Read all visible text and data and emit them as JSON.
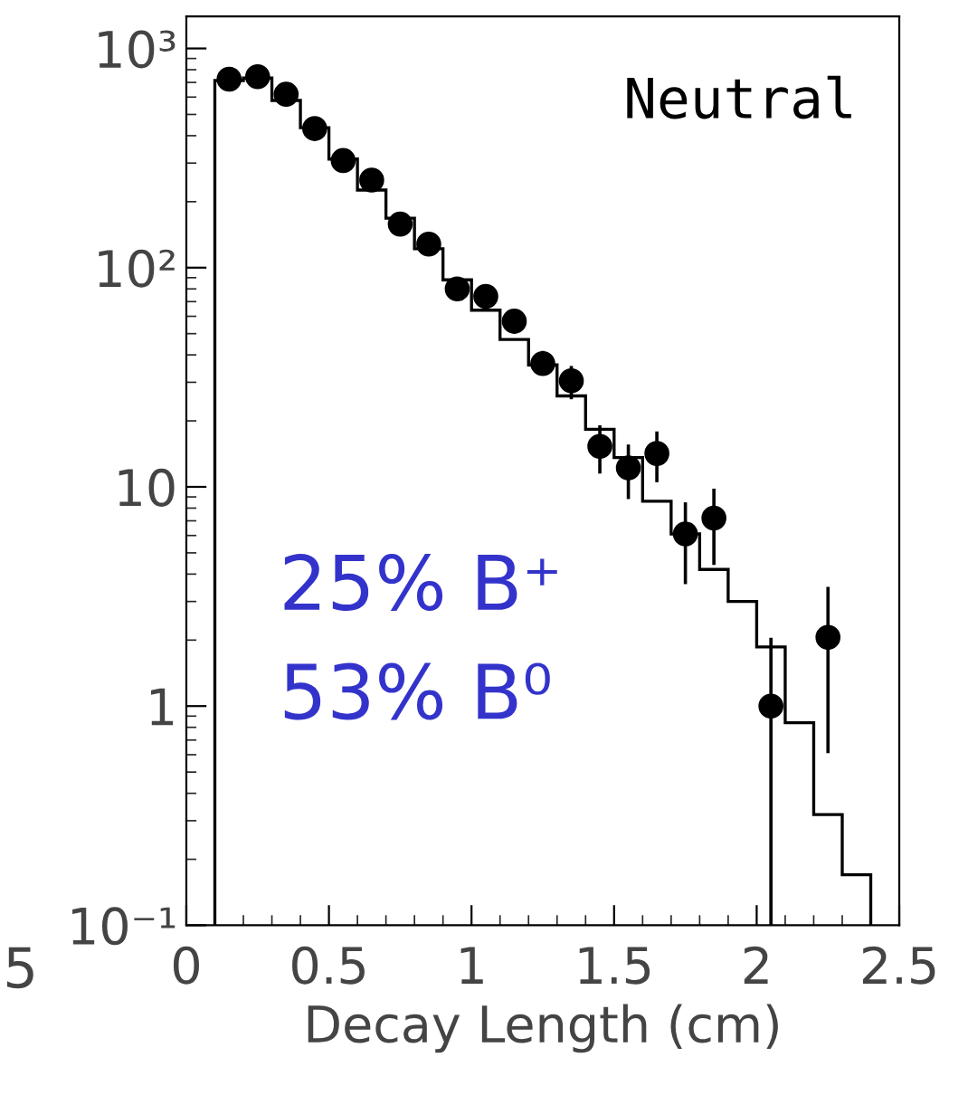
{
  "chart_data": {
    "type": "histogram",
    "xlabel": "Decay Length (cm)",
    "annotations": [
      "Neutral",
      "25% B⁺",
      "53% B⁰",
      "5"
    ],
    "xlim": [
      0,
      2.5
    ],
    "xticks": [
      0,
      0.5,
      1,
      1.5,
      2,
      2.5
    ],
    "log": true,
    "ylim": [
      0.1,
      1400
    ],
    "yticks": [
      {
        "value": 0.1,
        "label": "10⁻¹"
      },
      1,
      10,
      {
        "value": 100,
        "label": "10²"
      },
      {
        "value": 1000,
        "label": "10³"
      }
    ],
    "grid": false,
    "legend": false,
    "series": [
      {
        "color": "#000000",
        "bins": [
          0.1,
          0.2,
          0.3,
          0.4,
          0.5,
          0.6,
          0.7,
          0.8,
          0.9,
          1.0,
          1.1,
          1.2,
          1.3,
          1.4,
          1.5,
          1.6,
          1.7,
          1.8,
          1.9,
          2.0,
          2.1,
          2.2,
          2.3,
          2.4
        ],
        "values": [
          714,
          733,
          579,
          435,
          313,
          226,
          168,
          122,
          88,
          64,
          47,
          36,
          26,
          18.3,
          13.6,
          8.6,
          6.1,
          4.2,
          3.0,
          1.86,
          0.84,
          0.32,
          0.17
        ]
      },
      {
        "type": "scatter",
        "color": "#000000",
        "marker": "circle",
        "x": [
          0.15,
          0.25,
          0.35,
          0.45,
          0.55,
          0.65,
          0.75,
          0.85,
          0.95,
          1.05,
          1.15,
          1.25,
          1.35,
          1.45,
          1.55,
          1.65,
          1.75,
          1.85,
          2.05,
          2.25
        ],
        "values": [
          724,
          743,
          618,
          431,
          308,
          251,
          158,
          128,
          80,
          74,
          57,
          36.5,
          30.5,
          15.3,
          12.2,
          14.2,
          6.1,
          7.2,
          1.0,
          2.06
        ],
        "errors": [
          null,
          null,
          null,
          null,
          null,
          null,
          null,
          null,
          null,
          null,
          [
            50,
            62
          ],
          [
            33.3,
            41.7
          ],
          [
            25.1,
            35.6
          ],
          [
            11.5,
            19.1
          ],
          [
            8.8,
            15.6
          ],
          [
            10.5,
            17.9
          ],
          [
            3.6,
            8.5
          ],
          [
            4.4,
            9.8
          ],
          [
            0.1,
            2.05
          ],
          [
            0.61,
            3.5
          ]
        ]
      }
    ]
  }
}
